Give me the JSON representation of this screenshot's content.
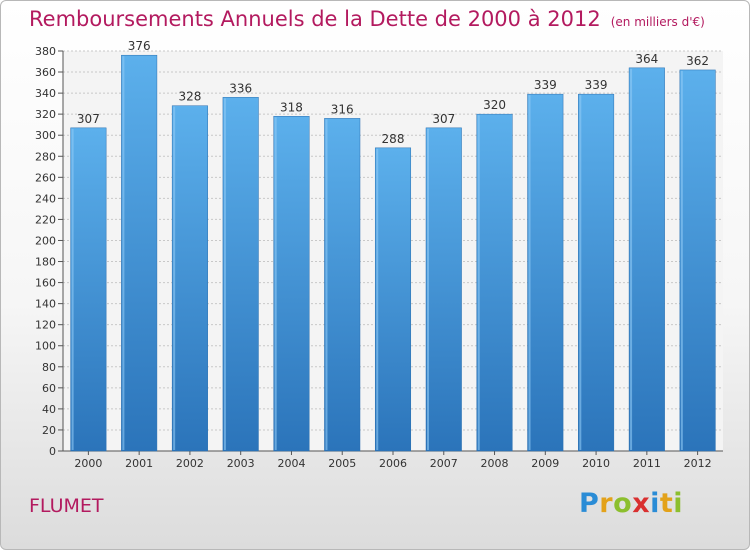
{
  "header": {
    "title": "Remboursements Annuels de la Dette de 2000 à 2012",
    "subtitle": "(en milliers d'€)"
  },
  "footer": {
    "commune": "FLUMET",
    "logo_text": "Proxiti"
  },
  "chart_data": {
    "type": "bar",
    "title": "Remboursements Annuels de la Dette de 2000 à 2012",
    "subtitle": "(en milliers d'€)",
    "categories": [
      "2000",
      "2001",
      "2002",
      "2003",
      "2004",
      "2005",
      "2006",
      "2007",
      "2008",
      "2009",
      "2010",
      "2011",
      "2012"
    ],
    "values": [
      307,
      376,
      328,
      336,
      318,
      316,
      288,
      307,
      320,
      339,
      339,
      364,
      362
    ],
    "ylim": [
      0,
      380
    ],
    "ytick_step": 20,
    "grid": true,
    "bar_color": "#4a9fe0",
    "bar_color_dark": "#2f78bd",
    "title_color": "#b31a5f"
  }
}
